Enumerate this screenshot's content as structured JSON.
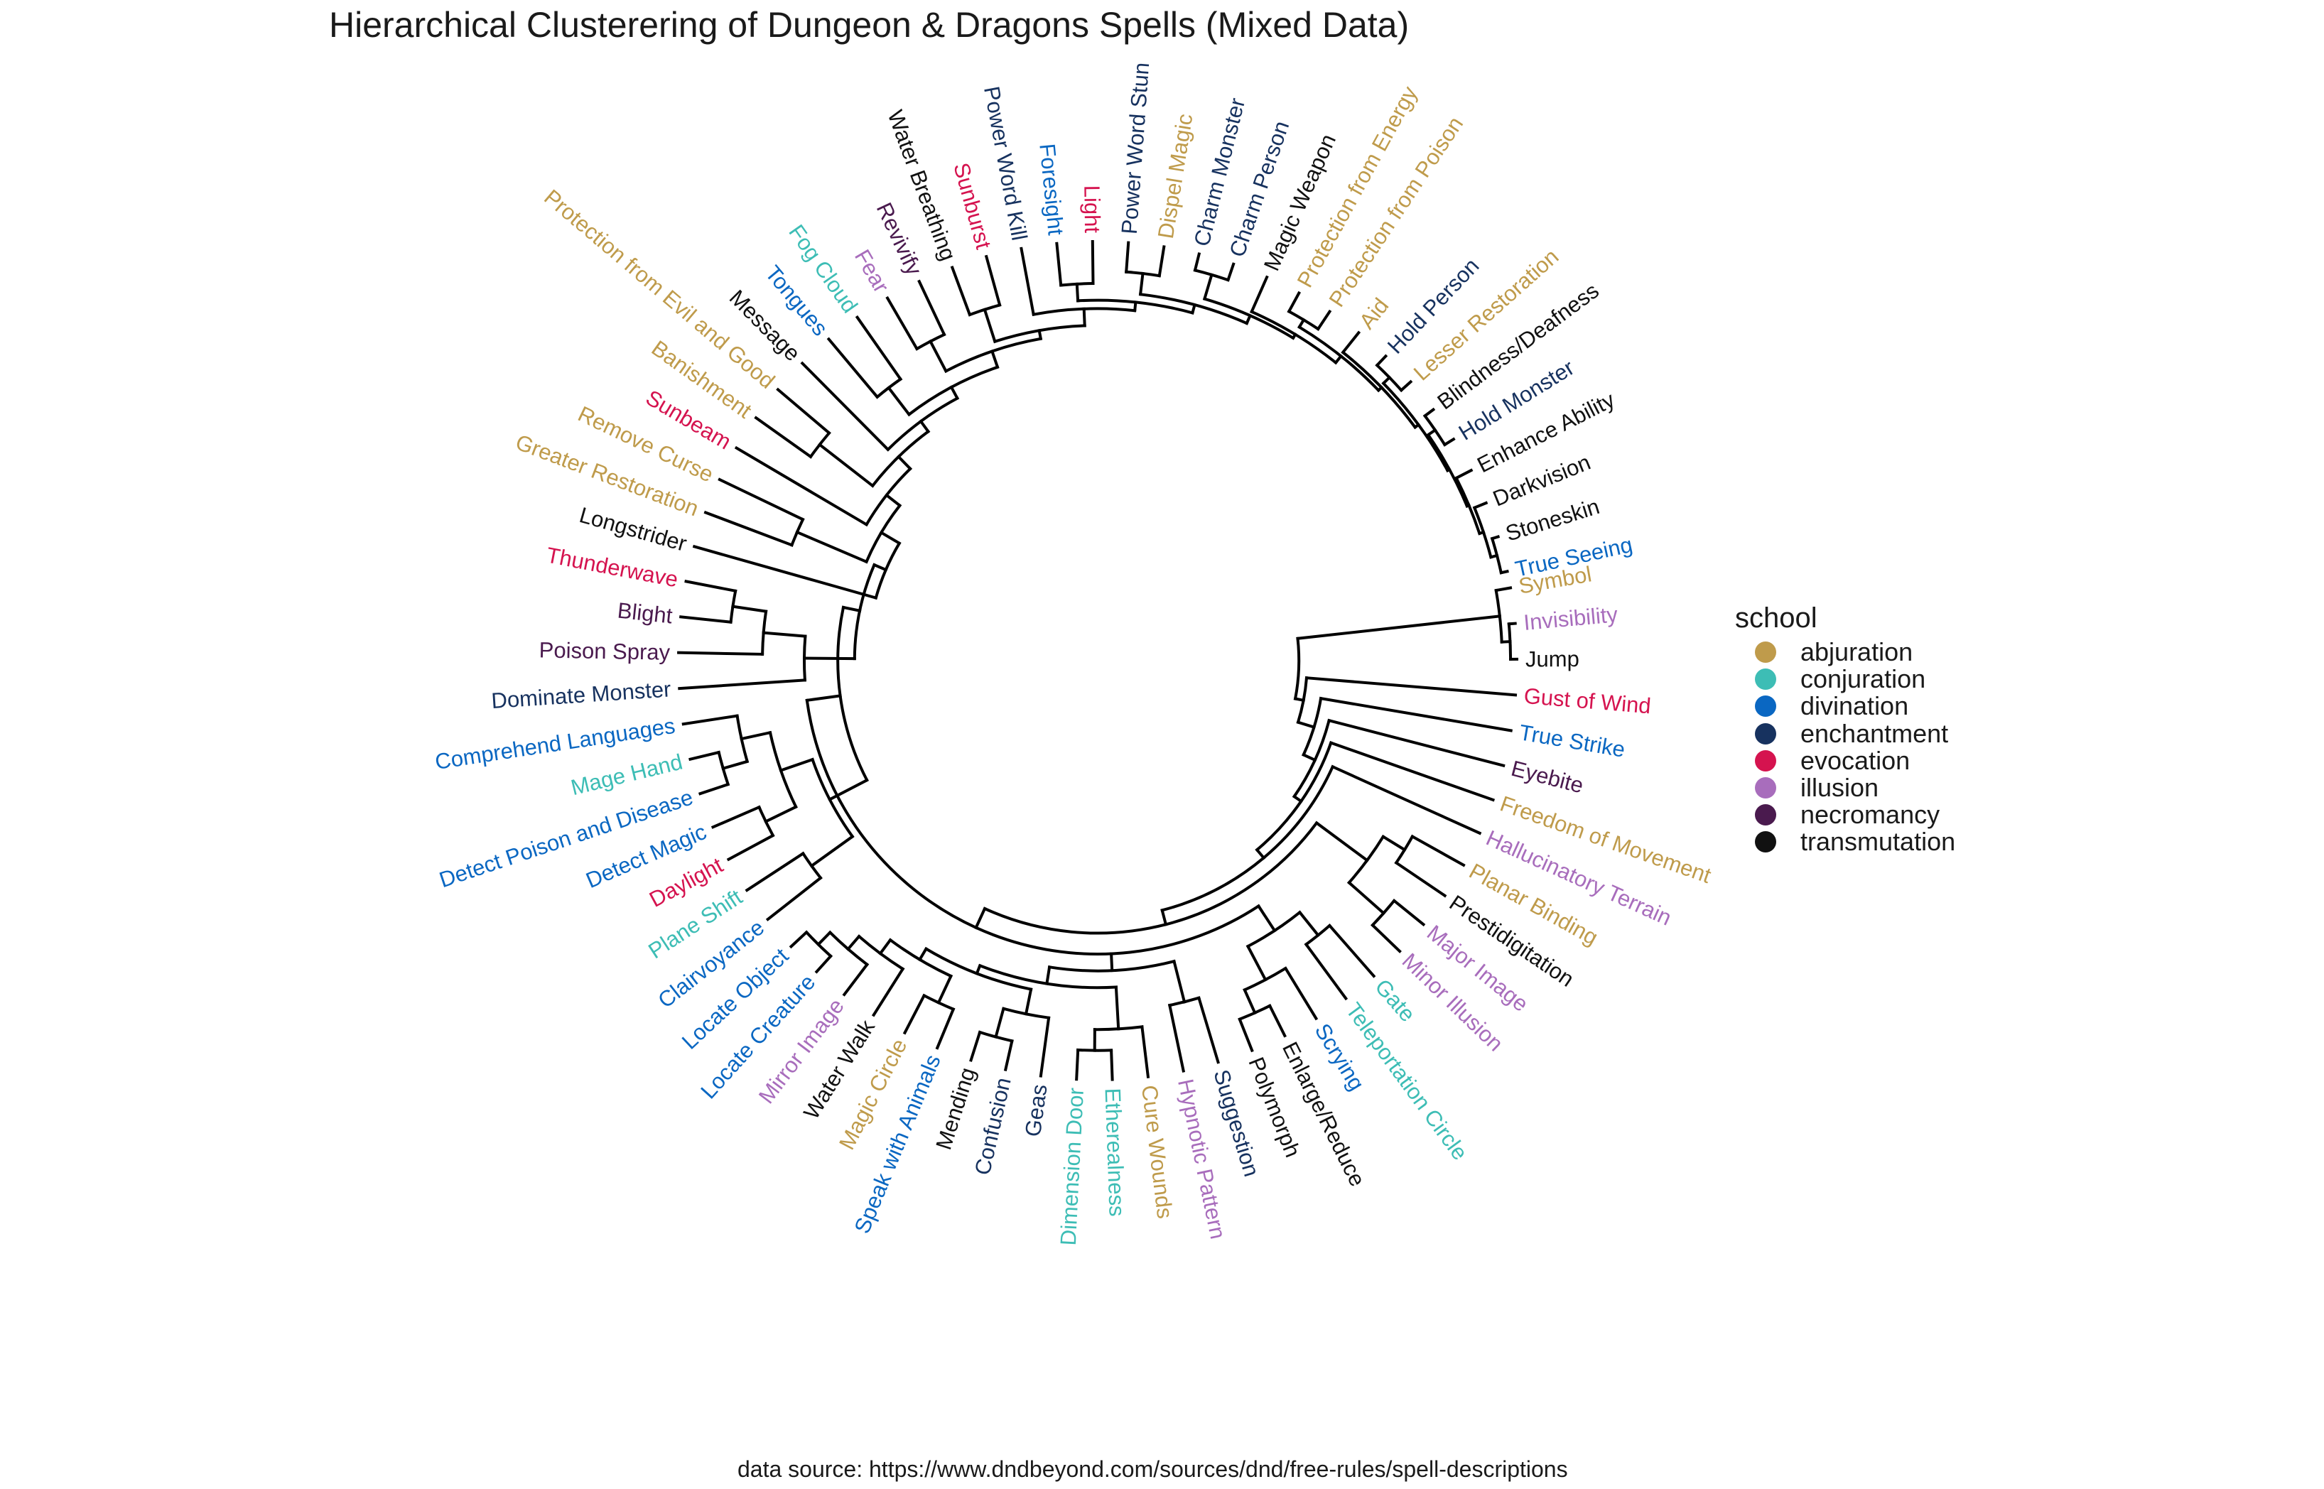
{
  "title": "Hierarchical Clusterering of Dungeon & Dragons Spells (Mixed Data)",
  "caption": "data source: https://www.dndbeyond.com/sources/dnd/free-rules/spell-descriptions",
  "legend": {
    "title": "school",
    "items": [
      {
        "label": "abjuration",
        "color": "#BF9B4B"
      },
      {
        "label": "conjuration",
        "color": "#3DBDB5"
      },
      {
        "label": "divination",
        "color": "#0A67C2"
      },
      {
        "label": "enchantment",
        "color": "#17325F"
      },
      {
        "label": "evocation",
        "color": "#D5134F"
      },
      {
        "label": "illusion",
        "color": "#A86DBC"
      },
      {
        "label": "necromancy",
        "color": "#4A1A4E"
      },
      {
        "label": "transmutation",
        "color": "#111111"
      }
    ]
  },
  "chart_data": {
    "type": "circular dendrogram",
    "leaves": [
      {
        "label": "Symbol",
        "school": "abjuration"
      },
      {
        "label": "Invisibility",
        "school": "illusion"
      },
      {
        "label": "Jump",
        "school": "transmutation"
      },
      {
        "label": "Gust of Wind",
        "school": "evocation"
      },
      {
        "label": "True Strike",
        "school": "divination"
      },
      {
        "label": "Eyebite",
        "school": "necromancy"
      },
      {
        "label": "Freedom of Movement",
        "school": "abjuration"
      },
      {
        "label": "Hallucinatory Terrain",
        "school": "illusion"
      },
      {
        "label": "Planar Binding",
        "school": "abjuration"
      },
      {
        "label": "Prestidigitation",
        "school": "transmutation"
      },
      {
        "label": "Major Image",
        "school": "illusion"
      },
      {
        "label": "Minor Illusion",
        "school": "illusion"
      },
      {
        "label": "Gate",
        "school": "conjuration"
      },
      {
        "label": "Teleportation Circle",
        "school": "conjuration"
      },
      {
        "label": "Scrying",
        "school": "divination"
      },
      {
        "label": "Enlarge/Reduce",
        "school": "transmutation"
      },
      {
        "label": "Polymorph",
        "school": "transmutation"
      },
      {
        "label": "Suggestion",
        "school": "enchantment"
      },
      {
        "label": "Hypnotic Pattern",
        "school": "illusion"
      },
      {
        "label": "Cure Wounds",
        "school": "abjuration"
      },
      {
        "label": "Etherealness",
        "school": "conjuration"
      },
      {
        "label": "Dimension Door",
        "school": "conjuration"
      },
      {
        "label": "Geas",
        "school": "enchantment"
      },
      {
        "label": "Confusion",
        "school": "enchantment"
      },
      {
        "label": "Mending",
        "school": "transmutation"
      },
      {
        "label": "Speak with Animals",
        "school": "divination"
      },
      {
        "label": "Magic Circle",
        "school": "abjuration"
      },
      {
        "label": "Water Walk",
        "school": "transmutation"
      },
      {
        "label": "Mirror Image",
        "school": "illusion"
      },
      {
        "label": "Locate Creature",
        "school": "divination"
      },
      {
        "label": "Locate Object",
        "school": "divination"
      },
      {
        "label": "Clairvoyance",
        "school": "divination"
      },
      {
        "label": "Plane Shift",
        "school": "conjuration"
      },
      {
        "label": "Daylight",
        "school": "evocation"
      },
      {
        "label": "Detect Magic",
        "school": "divination"
      },
      {
        "label": "Detect Poison and Disease",
        "school": "divination"
      },
      {
        "label": "Mage Hand",
        "school": "conjuration"
      },
      {
        "label": "Comprehend Languages",
        "school": "divination"
      },
      {
        "label": "Dominate Monster",
        "school": "enchantment"
      },
      {
        "label": "Poison Spray",
        "school": "necromancy"
      },
      {
        "label": "Blight",
        "school": "necromancy"
      },
      {
        "label": "Thunderwave",
        "school": "evocation"
      },
      {
        "label": "Longstrider",
        "school": "transmutation"
      },
      {
        "label": "Greater Restoration",
        "school": "abjuration"
      },
      {
        "label": "Remove Curse",
        "school": "abjuration"
      },
      {
        "label": "Sunbeam",
        "school": "evocation"
      },
      {
        "label": "Banishment",
        "school": "abjuration"
      },
      {
        "label": "Protection from Evil and Good",
        "school": "abjuration"
      },
      {
        "label": "Message",
        "school": "transmutation"
      },
      {
        "label": "Tongues",
        "school": "divination"
      },
      {
        "label": "Fog Cloud",
        "school": "conjuration"
      },
      {
        "label": "Fear",
        "school": "illusion"
      },
      {
        "label": "Revivify",
        "school": "necromancy"
      },
      {
        "label": "Water Breathing",
        "school": "transmutation"
      },
      {
        "label": "Sunburst",
        "school": "evocation"
      },
      {
        "label": "Power Word Kill",
        "school": "enchantment"
      },
      {
        "label": "Foresight",
        "school": "divination"
      },
      {
        "label": "Light",
        "school": "evocation"
      },
      {
        "label": "Power Word Stun",
        "school": "enchantment"
      },
      {
        "label": "Dispel Magic",
        "school": "abjuration"
      },
      {
        "label": "Charm Monster",
        "school": "enchantment"
      },
      {
        "label": "Charm Person",
        "school": "enchantment"
      },
      {
        "label": "Magic Weapon",
        "school": "transmutation"
      },
      {
        "label": "Protection from Energy",
        "school": "abjuration"
      },
      {
        "label": "Protection from Poison",
        "school": "abjuration"
      },
      {
        "label": "Aid",
        "school": "abjuration"
      },
      {
        "label": "Hold Person",
        "school": "enchantment"
      },
      {
        "label": "Lesser Restoration",
        "school": "abjuration"
      },
      {
        "label": "Blindness/Deafness",
        "school": "transmutation"
      },
      {
        "label": "Hold Monster",
        "school": "enchantment"
      },
      {
        "label": "Enhance Ability",
        "school": "transmutation"
      },
      {
        "label": "Darkvision",
        "school": "transmutation"
      },
      {
        "label": "Stoneskin",
        "school": "transmutation"
      },
      {
        "label": "True Seeing",
        "school": "divination"
      }
    ]
  }
}
